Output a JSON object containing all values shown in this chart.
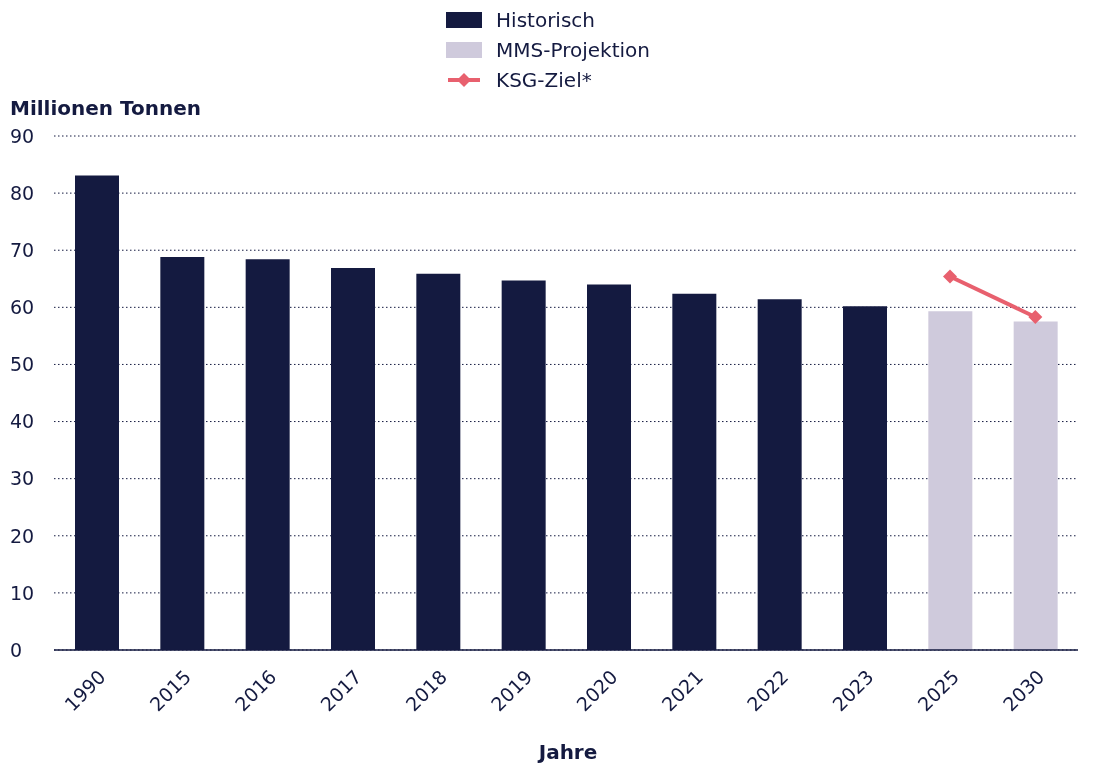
{
  "chart_data": {
    "type": "bar",
    "stacked": true,
    "ylabel": "Millionen Tonnen",
    "xlabel": "Jahre",
    "categories": [
      "1990",
      "2015",
      "2016",
      "2017",
      "2018",
      "2019",
      "2020",
      "2021",
      "2022",
      "2023",
      "2025",
      "2030"
    ],
    "series": [
      {
        "name": "Historisch",
        "color": "#141a40",
        "values": [
          83.1,
          68.8,
          68.4,
          66.9,
          65.9,
          64.7,
          64.0,
          62.4,
          61.4,
          60.2,
          null,
          null
        ]
      },
      {
        "name": "MMS-Projektion",
        "color": "#cfcadc",
        "values": [
          null,
          null,
          null,
          null,
          null,
          null,
          null,
          null,
          null,
          null,
          59.3,
          57.5
        ]
      },
      {
        "name": "KSG-Ziel*",
        "type": "line",
        "color": "#e8606e",
        "marker": "diamond",
        "values": [
          null,
          null,
          null,
          null,
          null,
          null,
          null,
          null,
          null,
          null,
          65.4,
          58.3
        ]
      }
    ],
    "ylim": [
      0,
      90
    ],
    "yticks": [
      0,
      10,
      20,
      30,
      40,
      50,
      60,
      70,
      80,
      90
    ],
    "grid": "y",
    "legend": "top"
  }
}
